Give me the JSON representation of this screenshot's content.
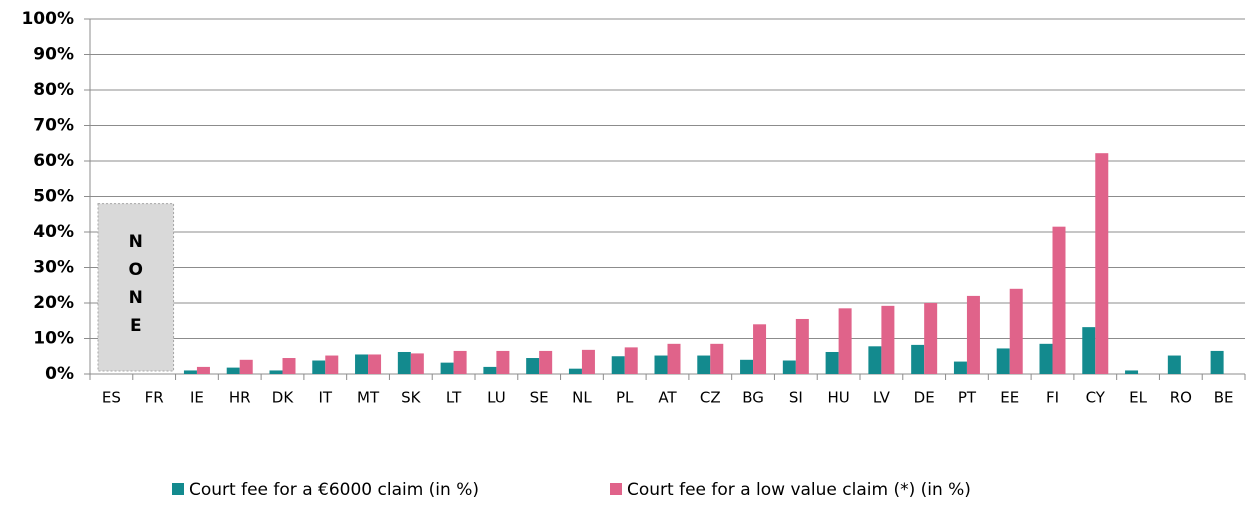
{
  "chart_data": {
    "type": "bar",
    "categories": [
      "ES",
      "FR",
      "IE",
      "HR",
      "DK",
      "IT",
      "MT",
      "SK",
      "LT",
      "LU",
      "SE",
      "NL",
      "PL",
      "AT",
      "CZ",
      "BG",
      "SI",
      "HU",
      "LV",
      "DE",
      "PT",
      "EE",
      "FI",
      "CY",
      "EL",
      "RO",
      "BE"
    ],
    "series": [
      {
        "name": "Court fee for a €6000 claim (in %)",
        "color": "#138a8e",
        "values": [
          null,
          null,
          1,
          1.8,
          1,
          3.8,
          5.5,
          6.2,
          3.2,
          2,
          4.5,
          1.5,
          5,
          5.2,
          5.2,
          4,
          3.8,
          6.2,
          7.8,
          8.2,
          3.5,
          7.2,
          8.5,
          13.2,
          1,
          5.2,
          6.5
        ]
      },
      {
        "name": "Court fee for a low value claim (*) (in %)",
        "color": "#e0638a",
        "values": [
          null,
          null,
          2,
          4,
          4.5,
          5.2,
          5.5,
          5.8,
          6.5,
          6.5,
          6.5,
          6.8,
          7.5,
          8.5,
          8.5,
          14,
          15.5,
          18.5,
          19.2,
          20,
          22,
          24,
          41.5,
          62.2,
          null,
          null,
          null
        ]
      }
    ],
    "annotation": "NONE",
    "ylim": [
      0,
      100
    ],
    "yticks": [
      {
        "value": 0,
        "label": "0%"
      },
      {
        "value": 10,
        "label": "10%"
      },
      {
        "value": 20,
        "label": "20%"
      },
      {
        "value": 30,
        "label": "30%"
      },
      {
        "value": 40,
        "label": "40%"
      },
      {
        "value": 50,
        "label": "50%"
      },
      {
        "value": 60,
        "label": "60%"
      },
      {
        "value": 70,
        "label": "70%"
      },
      {
        "value": 80,
        "label": "80%"
      },
      {
        "value": 90,
        "label": "90%"
      },
      {
        "value": 100,
        "label": "100%"
      }
    ],
    "grid": true,
    "legend": "bottom"
  }
}
